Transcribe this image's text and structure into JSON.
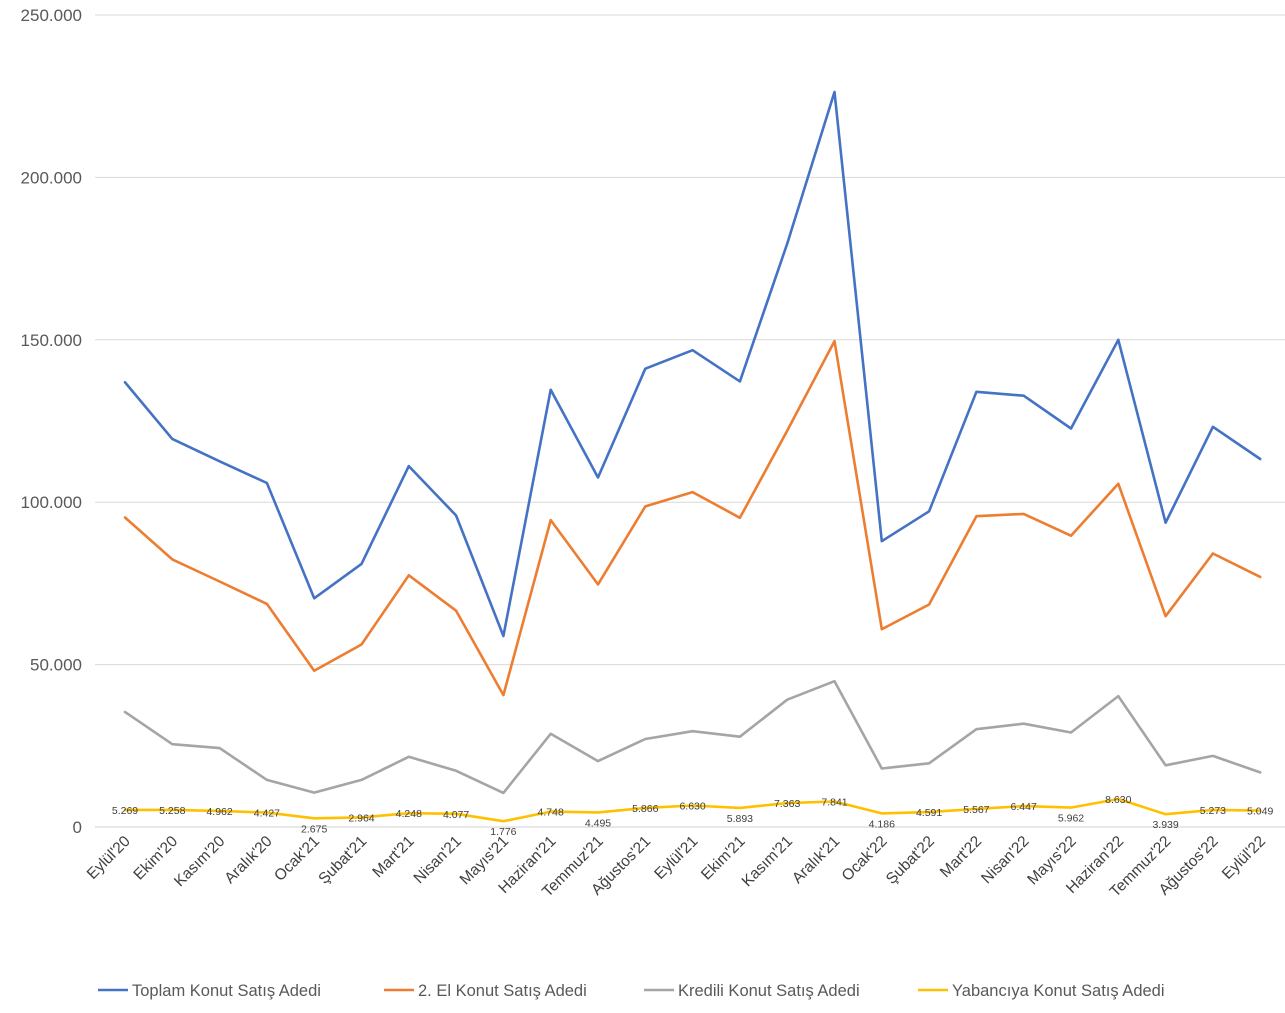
{
  "chart_data": {
    "type": "line",
    "title": "",
    "xlabel": "",
    "ylabel": "",
    "ylim": [
      0,
      250000
    ],
    "y_ticks": [
      0,
      50000,
      100000,
      150000,
      200000,
      250000
    ],
    "y_tick_labels": [
      "0",
      "50.000",
      "100.000",
      "150.000",
      "200.000",
      "250.000"
    ],
    "grid": "horizontal",
    "legend_position": "bottom",
    "categories": [
      "Eylül'20",
      "Ekim'20",
      "Kasım'20",
      "Aralık'20",
      "Ocak'21",
      "Şubat'21",
      "Mart'21",
      "Nisan'21",
      "Mayıs'21",
      "Haziran'21",
      "Temmuz'21",
      "Ağustos'21",
      "Eylül'21",
      "Ekim'21",
      "Kasım'21",
      "Aralık'21",
      "Ocak'22",
      "Şubat'22",
      "Mart'22",
      "Nisan'22",
      "Mayıs'22",
      "Haziran'22",
      "Temmuz'22",
      "Ağustos'22",
      "Eylül'22"
    ],
    "series": [
      {
        "name": "Toplam Konut Satış Adedi",
        "color": "#4472C4",
        "values": [
          136900,
          119500,
          112600,
          105900,
          70400,
          81000,
          111100,
          95900,
          58800,
          134600,
          107600,
          141100,
          146800,
          137200,
          179600,
          226300,
          88000,
          97200,
          134000,
          132800,
          122700,
          150000,
          93700,
          123200,
          113300
        ]
      },
      {
        "name": "2. El Konut Satış Adedi",
        "color": "#ED7D31",
        "values": [
          95300,
          82400,
          75600,
          68700,
          48100,
          56200,
          77500,
          66600,
          40600,
          94500,
          74700,
          98700,
          103100,
          95200,
          122000,
          149600,
          60900,
          68500,
          95700,
          96400,
          89700,
          105700,
          64900,
          84200,
          77000
        ]
      },
      {
        "name": "Kredili Konut Satış Adedi",
        "color": "#A5A5A5",
        "values": [
          35400,
          25500,
          24300,
          14500,
          10600,
          14500,
          21600,
          17300,
          10500,
          28700,
          20300,
          27100,
          29500,
          27800,
          39200,
          44900,
          18000,
          19600,
          30100,
          31800,
          29100,
          40300,
          19000,
          21900,
          16800
        ]
      },
      {
        "name": "Yabancıya Konut Satış Adedi",
        "color": "#FFC000",
        "values": [
          5269,
          5258,
          4962,
          4427,
          2675,
          2964,
          4248,
          4077,
          1776,
          4748,
          4495,
          5866,
          6630,
          5893,
          7363,
          7841,
          4186,
          4591,
          5567,
          6447,
          5962,
          8630,
          3939,
          5273,
          5049
        ],
        "data_labels": [
          "5.269",
          "5.258",
          "4.962",
          "4.427",
          "2.675",
          "2.964",
          "4.248",
          "4.077",
          "1.776",
          "4.748",
          "4.495",
          "5.866",
          "6.630",
          "5.893",
          "7.363",
          "7.841",
          "4.186",
          "4.591",
          "5.567",
          "6.447",
          "5.962",
          "8.630",
          "3.939",
          "5.273",
          "5.049"
        ]
      }
    ]
  }
}
